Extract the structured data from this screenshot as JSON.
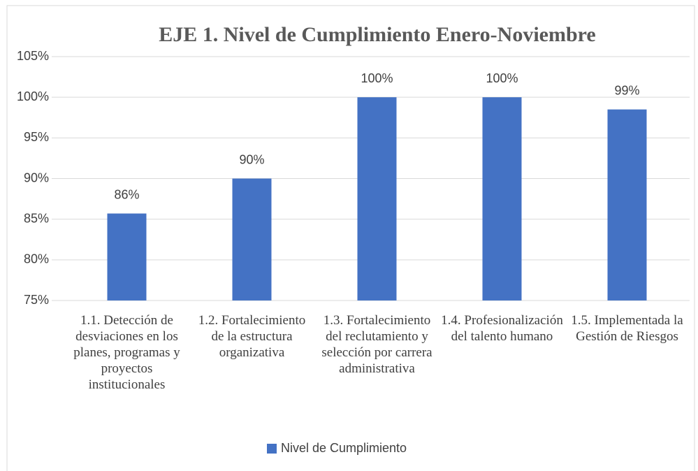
{
  "chart_data": {
    "type": "bar",
    "title": "EJE 1. Nivel de Cumplimiento Enero-Noviembre",
    "categories": [
      "1.1. Detección de desviaciones en los planes, programas y proyectos institucionales",
      "1.2. Fortalecimiento de la estructura organizativa",
      "1.3. Fortalecimiento del reclutamiento y selección por carrera administrativa",
      "1.4. Profesionalización del talento humano",
      "1.5. Implementada la Gestión de Riesgos"
    ],
    "series": [
      {
        "name": "Nivel de Cumplimiento",
        "color": "#4472c4",
        "values": [
          85.7,
          90,
          100,
          100,
          98.5
        ],
        "value_labels": [
          "86%",
          "90%",
          "100%",
          "100%",
          "99%"
        ]
      }
    ],
    "ylim": [
      75,
      105
    ],
    "yticks": [
      {
        "value": 75,
        "label": "75%"
      },
      {
        "value": 80,
        "label": "80%"
      },
      {
        "value": 85,
        "label": "85%"
      },
      {
        "value": 90,
        "label": "90%"
      },
      {
        "value": 95,
        "label": "95%"
      },
      {
        "value": 100,
        "label": "100%"
      },
      {
        "value": 105,
        "label": "105%"
      }
    ],
    "grid": true,
    "legend": "bottom"
  }
}
